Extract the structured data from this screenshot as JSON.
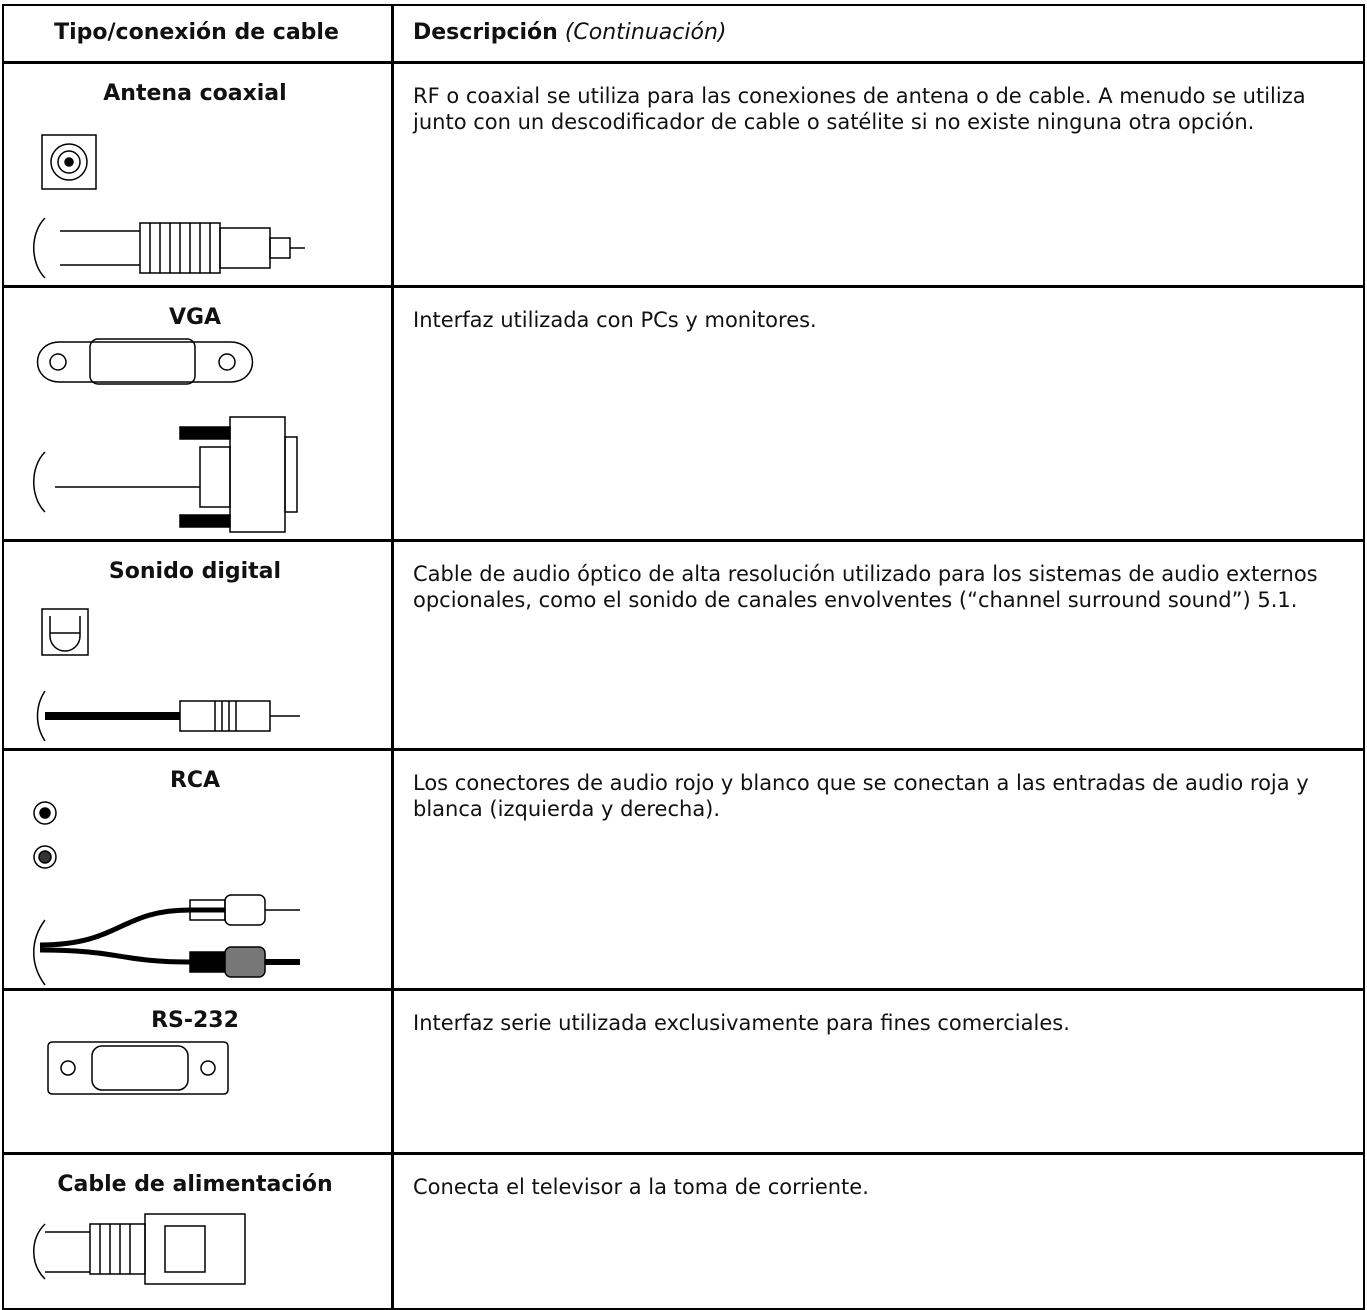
{
  "header": {
    "col1": "Tipo/conexión de cable",
    "col2": "Descripción",
    "col2_note": "(Continuación)"
  },
  "rows": [
    {
      "type": "Antena coaxial",
      "description": "RF o coaxial se utiliza para las conexiones de antena o de cable. A menudo se utiliza junto con un descodificador de cable o satélite si no existe ninguna otra opción."
    },
    {
      "type": "VGA",
      "description": "Interfaz utilizada con PCs y monitores."
    },
    {
      "type": "Sonido digital",
      "description": "Cable de audio óptico de alta resolución utilizado para los sistemas de audio externos opcionales, como el sonido de canales envolventes (“channel surround sound”) 5.1."
    },
    {
      "type": "RCA",
      "description": "Los conectores de audio rojo y blanco que se conectan a las entradas de audio roja y blanca (izquierda y derecha)."
    },
    {
      "type": "RS-232",
      "description": "Interfaz serie utilizada exclusivamente para fines comerciales."
    },
    {
      "type": "Cable de alimentación",
      "description": "Conecta el televisor a la toma de corriente."
    }
  ]
}
